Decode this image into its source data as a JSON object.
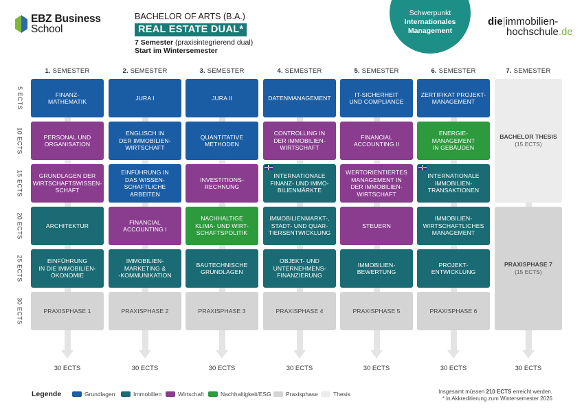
{
  "header": {
    "school_line1": "EBZ Business",
    "school_line2": "School",
    "degree": "BACHELOR OF ARTS (B.A.)",
    "program": "REAL ESTATE DUAL*",
    "semesters_bold": "7 Semester",
    "semesters_note": "(praxisintegrierend dual)",
    "start": "Start im Wintersemester",
    "focus_line1": "Schwerpunkt",
    "focus_line2": "Internationales",
    "focus_line3": "Management",
    "partner_bold": "die",
    "partner_sep": "|",
    "partner_line1": "immobilien-",
    "partner_line2": "hochschule",
    "partner_tld": ".de"
  },
  "semesters": [
    {
      "num": "1.",
      "label": "SEMESTER"
    },
    {
      "num": "2.",
      "label": "SEMESTER"
    },
    {
      "num": "3.",
      "label": "SEMESTER"
    },
    {
      "num": "4.",
      "label": "SEMESTER"
    },
    {
      "num": "5.",
      "label": "SEMESTER"
    },
    {
      "num": "6.",
      "label": "SEMESTER"
    },
    {
      "num": "7.",
      "label": "SEMESTER"
    }
  ],
  "rows": [
    "5 ECTS",
    "10 ECTS",
    "15 ECTS",
    "20 ECTS",
    "25 ECTS",
    "30 ECTS"
  ],
  "modules": {
    "s1": [
      {
        "text": "FINANZ-\nMATHEMATIK",
        "cat": "grund"
      },
      {
        "text": "PERSONAL UND\nORGANISATION",
        "cat": "wirt"
      },
      {
        "text": "GRUNDLAGEN DER\nWIRTSCHAFTSWISSEN-\nSCHAFT",
        "cat": "wirt"
      },
      {
        "text": "ARCHITEKTUR",
        "cat": "immo"
      },
      {
        "text": "EINFÜHRUNG\nIN DIE IMMOBILIEN-\nÖKONOMIE",
        "cat": "immo"
      },
      {
        "text": "PRAXISPHASE 1",
        "cat": "prax"
      }
    ],
    "s2": [
      {
        "text": "JURA I",
        "cat": "grund"
      },
      {
        "text": "ENGLISCH IN\nDER IMMOBILIEN-\nWIRTSCHAFT",
        "cat": "grund"
      },
      {
        "text": "EINFÜHRUNG IN\nDAS WISSEN-\nSCHAFTLICHE\nARBEITEN",
        "cat": "grund"
      },
      {
        "text": "FINANCIAL\nACCOUNTING I",
        "cat": "wirt"
      },
      {
        "text": "IMMOBILIEN-\nMARKETING &\n-KOMMUNIKATION",
        "cat": "immo"
      },
      {
        "text": "PRAXISPHASE 2",
        "cat": "prax"
      }
    ],
    "s3": [
      {
        "text": "JURA II",
        "cat": "grund"
      },
      {
        "text": "QUANTITATIVE\nMETHODEN",
        "cat": "grund"
      },
      {
        "text": "INVESTITIONS-\nRECHNUNG",
        "cat": "wirt"
      },
      {
        "text": "NACHHALTIGE\nKLIMA- UND WIRT-\nSCHAFTSPOLITIK",
        "cat": "nach"
      },
      {
        "text": "BAUTECHNISCHE\nGRUNDLAGEN",
        "cat": "immo"
      },
      {
        "text": "PRAXISPHASE 3",
        "cat": "prax"
      }
    ],
    "s4": [
      {
        "text": "DATENMANAGEMENT",
        "cat": "grund"
      },
      {
        "text": "CONTROLLING IN\nDER IMMOBILIEN-\nWIRTSCHAFT",
        "cat": "wirt"
      },
      {
        "text": "INTERNATIONALE\nFINANZ- UND IMMO-\nBILIENMÄRKTE",
        "cat": "immo",
        "flag": true
      },
      {
        "text": "IMMOBILIENMARKT-,\nSTADT- UND QUAR-\nTIERSENTWICKLUNG",
        "cat": "immo"
      },
      {
        "text": "OBJEKT- UND\nUNTERNEHMENS-\nFINANZIERUNG",
        "cat": "immo"
      },
      {
        "text": "PRAXISPHASE 4",
        "cat": "prax"
      }
    ],
    "s5": [
      {
        "text": "IT-SICHERHEIT\nUND COMPLIANCE",
        "cat": "grund"
      },
      {
        "text": "FINANCIAL\nACCOUNTING II",
        "cat": "wirt"
      },
      {
        "text": "WERTORIENTIERTES\nMANAGEMENT IN\nDER IMMOBILIEN-\nWIRTSCHAFT",
        "cat": "wirt"
      },
      {
        "text": "STEUERN",
        "cat": "wirt"
      },
      {
        "text": "IMMOBILIEN-\nBEWERTUNG",
        "cat": "immo"
      },
      {
        "text": "PRAXISPHASE 5",
        "cat": "prax"
      }
    ],
    "s6": [
      {
        "text": "ZERTIFIKAT PROJEKT-\nMANAGEMENT",
        "cat": "grund"
      },
      {
        "text": "ENERGIE-\nMANAGEMENT\nIN GEBÄUDEN",
        "cat": "nach"
      },
      {
        "text": "INTERNATIONALE\nIMMOBILIEN-\nTRANSAKTIONEN",
        "cat": "immo",
        "flag": true
      },
      {
        "text": "IMMOBILIEN-\nWIRTSCHAFTLICHES\nMANAGEMENT",
        "cat": "immo"
      },
      {
        "text": "PROJEKT-\nENTWICKLUNG",
        "cat": "immo"
      },
      {
        "text": "PRAXISPHASE 6",
        "cat": "prax"
      }
    ],
    "s7": [
      {
        "text": "BACHELOR THESIS",
        "sub": "(15 ECTS)",
        "cat": "thes"
      },
      {
        "text": "PRAXISPHASE 7",
        "sub": "(15 ECTS)",
        "cat": "prax"
      }
    ]
  },
  "totals": [
    "30 ECTS",
    "30 ECTS",
    "30 ECTS",
    "30 ECTS",
    "30 ECTS",
    "30 ECTS",
    "30 ECTS"
  ],
  "legend": {
    "title": "Legende",
    "items": [
      {
        "label": "Grundlagen",
        "color": "#1b5da4"
      },
      {
        "label": "Immobilien",
        "color": "#1a6b73"
      },
      {
        "label": "Wirtschaft",
        "color": "#8a3d8f"
      },
      {
        "label": "Nachhaltigkeit/ESG",
        "color": "#2c9a3d"
      },
      {
        "label": "Praxisphase",
        "color": "#d4d4d4"
      },
      {
        "label": "Thesis",
        "color": "#ececec"
      }
    ]
  },
  "footnote": {
    "line1_pre": "Insgesamt müssen",
    "line1_bold": "210 ECTS",
    "line1_post": "erreicht werden.",
    "line2": "* in Akkreditierung zum Wintersemester 2026"
  }
}
